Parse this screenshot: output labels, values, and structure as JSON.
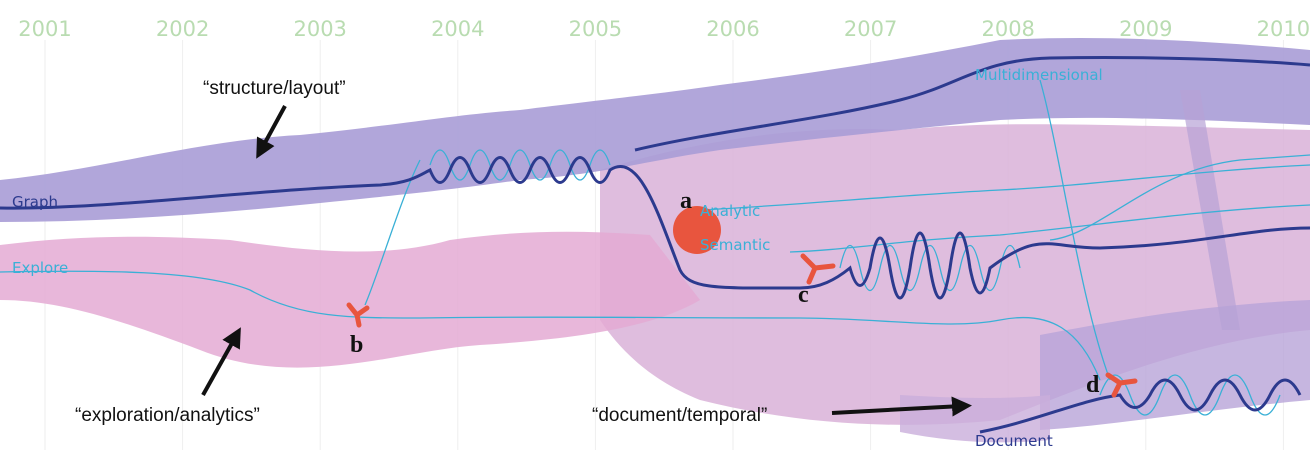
{
  "years": [
    "2001",
    "2002",
    "2003",
    "2004",
    "2005",
    "2006",
    "2007",
    "2008",
    "2009",
    "2010"
  ],
  "topics": {
    "graph": "Graph",
    "explore": "Explore",
    "analytic": "Analytic",
    "semantic": "Semantic",
    "multidimensional": "Multidimensional",
    "document": "Document"
  },
  "annotations": {
    "structure": "“structure/layout”",
    "exploration": "“exploration/analytics”",
    "document": "“document/temporal”"
  },
  "markers": {
    "a": "a",
    "b": "b",
    "c": "c",
    "d": "d"
  }
}
